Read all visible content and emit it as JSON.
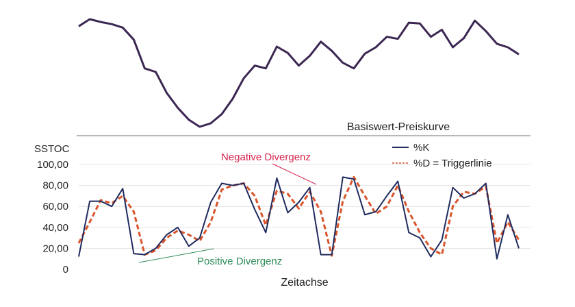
{
  "chart_data": [
    {
      "type": "line",
      "title": "Basiswert-Preiskurve",
      "x": [
        0,
        4,
        8,
        12,
        16,
        20,
        24,
        28,
        32,
        36,
        40,
        44,
        48,
        52,
        56,
        60,
        64,
        68,
        72,
        76,
        80,
        84,
        88,
        92,
        96,
        100,
        104,
        108,
        112,
        116,
        120,
        124,
        128,
        132,
        136,
        140,
        144,
        148,
        152,
        156,
        160
      ],
      "series": [
        {
          "name": "",
          "color": "#3b2752",
          "values": [
            0.6,
            0.7,
            0.66,
            0.63,
            0.58,
            0.41,
            0.0,
            -0.05,
            -0.35,
            -0.56,
            -0.73,
            -0.83,
            -0.78,
            -0.65,
            -0.43,
            -0.14,
            0.04,
            0.0,
            0.31,
            0.22,
            0.04,
            0.18,
            0.38,
            0.25,
            0.08,
            0.0,
            0.21,
            0.3,
            0.45,
            0.42,
            0.65,
            0.64,
            0.45,
            0.55,
            0.3,
            0.43,
            0.68,
            0.53,
            0.35,
            0.3,
            0.2
          ]
        }
      ]
    },
    {
      "type": "line",
      "ylabel": "SSTOC",
      "xlabel": "Zeitachse",
      "ylim": [
        0,
        100
      ],
      "yticks": [
        "0",
        "20,00",
        "40,00",
        "60,00",
        "80,00",
        "100,00"
      ],
      "grid": true,
      "legend": "top-right",
      "x": [
        0,
        4,
        8,
        12,
        16,
        20,
        24,
        28,
        32,
        36,
        40,
        44,
        48,
        52,
        56,
        60,
        64,
        68,
        72,
        76,
        80,
        84,
        88,
        92,
        96,
        100,
        104,
        108,
        112,
        116,
        120,
        124,
        128,
        132,
        136,
        140,
        144,
        148,
        152,
        156,
        160
      ],
      "series": [
        {
          "name": "%K",
          "color": "#1f2a5e",
          "values": [
            12,
            65,
            65,
            60,
            77,
            15,
            14,
            20,
            33,
            40,
            22,
            30,
            64,
            82,
            80,
            82,
            57,
            35,
            87,
            54,
            64,
            78,
            14,
            14,
            88,
            86,
            52,
            55,
            70,
            84,
            35,
            30,
            12,
            28,
            78,
            68,
            72,
            82,
            10,
            52,
            20
          ]
        },
        {
          "name": "%D = Triggerlinie",
          "color": "#d9542b",
          "values": [
            25,
            45,
            66,
            63,
            70,
            55,
            14,
            18,
            30,
            37,
            33,
            27,
            45,
            76,
            80,
            82,
            70,
            42,
            75,
            72,
            58,
            74,
            55,
            13,
            65,
            88,
            70,
            53,
            60,
            80,
            55,
            35,
            20,
            14,
            60,
            74,
            72,
            79,
            25,
            45,
            28
          ]
        }
      ],
      "annotations": [
        {
          "text": "Negative Divergenz",
          "color": "#d6244b"
        },
        {
          "text": "Positive Divergenz",
          "color": "#2e8b57"
        }
      ]
    }
  ]
}
